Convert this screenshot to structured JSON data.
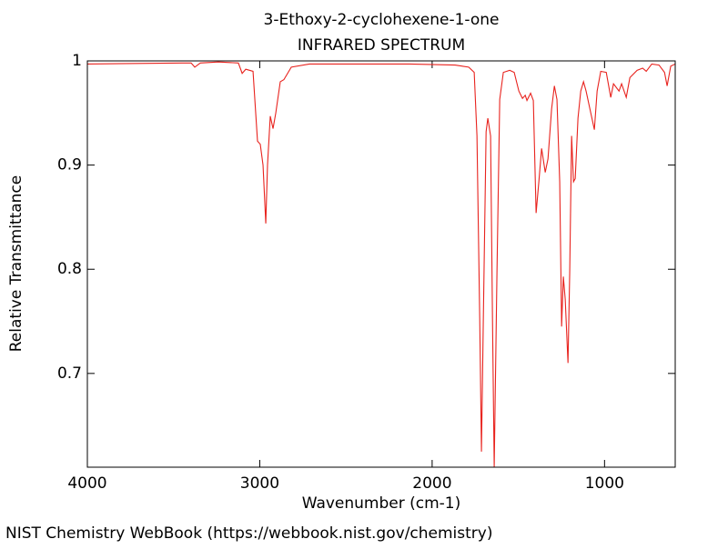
{
  "chart_data": {
    "type": "line",
    "title": "3-Ethoxy-2-cyclohexene-1-one",
    "subtitle": "INFRARED SPECTRUM",
    "x_label": "Wavenumber (cm-1)",
    "y_label": "Relative Transmittance",
    "xlim": [
      4000,
      590
    ],
    "ylim": [
      0.61,
      1
    ],
    "xticks": [
      4000,
      3000,
      2000,
      1000
    ],
    "yticks": [
      0.7,
      0.8,
      0.9,
      1
    ],
    "series": [
      {
        "color": "#e8231e",
        "x": [
          4000,
          3451,
          3398,
          3377,
          3345,
          3240,
          3124,
          3102,
          3081,
          3039,
          3013,
          2997,
          2981,
          2965,
          2955,
          2939,
          2923,
          2907,
          2881,
          2860,
          2817,
          2712,
          2131,
          1867,
          1788,
          1756,
          1740,
          1724,
          1714,
          1703,
          1687,
          1677,
          1661,
          1650,
          1640,
          1624,
          1608,
          1587,
          1550,
          1524,
          1497,
          1476,
          1460,
          1450,
          1429,
          1413,
          1397,
          1381,
          1365,
          1344,
          1328,
          1307,
          1291,
          1276,
          1260,
          1249,
          1239,
          1228,
          1212,
          1202,
          1191,
          1180,
          1170,
          1154,
          1138,
          1122,
          1107,
          1059,
          1043,
          1022,
          990,
          964,
          948,
          916,
          901,
          874,
          853,
          811,
          779,
          758,
          726,
          684,
          652,
          637,
          616,
          590
        ],
        "values": [
          0.997,
          0.998,
          0.998,
          0.994,
          0.998,
          0.999,
          0.998,
          0.988,
          0.992,
          0.99,
          0.923,
          0.92,
          0.9,
          0.844,
          0.9,
          0.947,
          0.935,
          0.95,
          0.98,
          0.982,
          0.994,
          0.997,
          0.997,
          0.996,
          0.994,
          0.989,
          0.928,
          0.753,
          0.625,
          0.753,
          0.932,
          0.945,
          0.928,
          0.753,
          0.61,
          0.797,
          0.963,
          0.989,
          0.991,
          0.989,
          0.971,
          0.964,
          0.967,
          0.962,
          0.969,
          0.962,
          0.854,
          0.884,
          0.916,
          0.893,
          0.906,
          0.954,
          0.976,
          0.963,
          0.884,
          0.745,
          0.793,
          0.771,
          0.71,
          0.797,
          0.928,
          0.884,
          0.887,
          0.945,
          0.971,
          0.98,
          0.971,
          0.934,
          0.971,
          0.99,
          0.989,
          0.965,
          0.978,
          0.971,
          0.978,
          0.965,
          0.984,
          0.991,
          0.993,
          0.99,
          0.997,
          0.996,
          0.989,
          0.976,
          0.995,
          0.997
        ]
      }
    ]
  },
  "footer": "NIST Chemistry WebBook (https://webbook.nist.gov/chemistry)"
}
